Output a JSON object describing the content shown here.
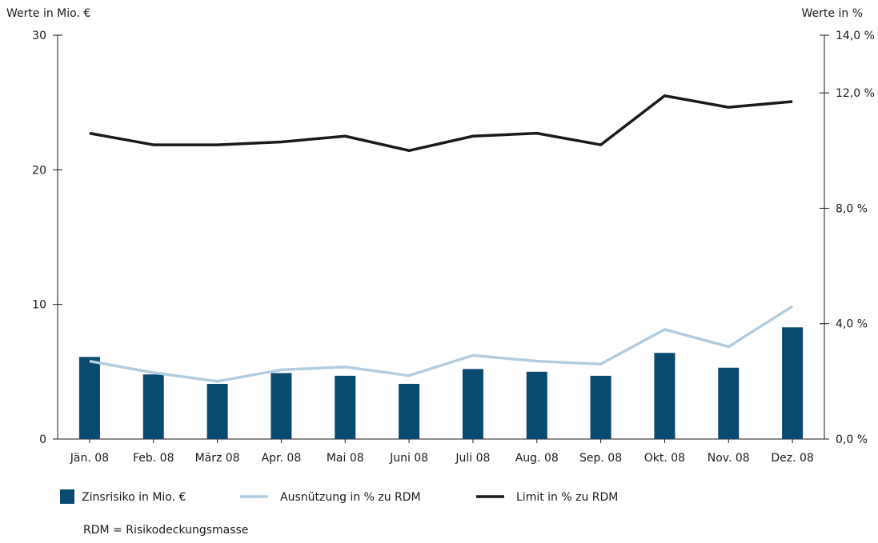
{
  "chart_data": {
    "type": "bar",
    "categories": [
      "Jän. 08",
      "Feb. 08",
      "März 08",
      "Apr. 08",
      "Mai 08",
      "Juni 08",
      "Juli 08",
      "Aug. 08",
      "Sep. 08",
      "Okt. 08",
      "Nov. 08",
      "Dez. 08"
    ],
    "series": [
      {
        "name": "Zinsrisiko in Mio. €",
        "kind": "bar",
        "axis": "left",
        "color": "#0b4a70",
        "values": [
          6.1,
          4.8,
          4.1,
          4.9,
          4.7,
          4.1,
          5.2,
          5.0,
          4.7,
          6.4,
          5.3,
          8.3
        ]
      },
      {
        "name": "Ausnützung in % zu RDM",
        "kind": "line",
        "axis": "right",
        "color": "#b3cde0",
        "values": [
          2.7,
          2.3,
          2.0,
          2.4,
          2.5,
          2.2,
          2.9,
          2.7,
          2.6,
          3.8,
          3.2,
          4.6
        ]
      },
      {
        "name": "Limit in % zu RDM",
        "kind": "line",
        "axis": "right",
        "color": "#1a1a1a",
        "values": [
          10.6,
          10.2,
          10.2,
          10.3,
          10.5,
          10.0,
          10.5,
          10.6,
          10.2,
          11.9,
          11.5,
          11.7
        ]
      }
    ],
    "ylabel": "Werte in Mio. €",
    "y2label": "Werte in %",
    "ylim": [
      0,
      30
    ],
    "y2lim": [
      0,
      14
    ],
    "yticks": [
      "0",
      "10",
      "20",
      "30"
    ],
    "y2ticks": [
      "0,0 %",
      "4,0 %",
      "8,0 %",
      "12,0 %",
      "14,0 %"
    ],
    "y2tick_values": [
      0,
      4,
      8,
      12,
      14
    ],
    "grid": false,
    "legend_position": "bottom-left"
  },
  "footnote": "RDM = Risikodeckungsmasse"
}
